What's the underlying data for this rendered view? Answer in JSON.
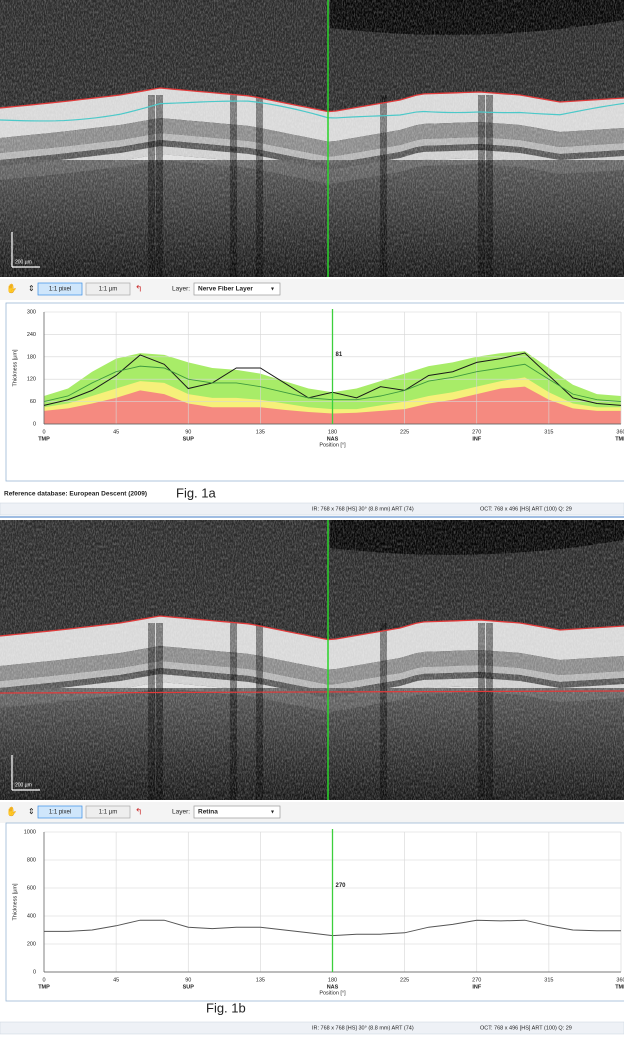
{
  "panels": [
    {
      "image": {
        "scale_label": "200 µm"
      },
      "toolbar": {
        "buttons": [
          "1:1 pixel",
          "1:1 µm"
        ],
        "layer_label": "Layer:",
        "layer": "Nerve Fiber Layer"
      },
      "chart_data": {
        "type": "line",
        "ylabel": "Thickness [µm]",
        "xlabel": "Position [°]",
        "x": [
          0,
          15,
          30,
          45,
          60,
          75,
          90,
          105,
          120,
          135,
          150,
          165,
          180,
          195,
          210,
          225,
          240,
          255,
          270,
          285,
          300,
          315,
          330,
          345,
          360
        ],
        "series": [
          {
            "color": "#1a1a1a",
            "values": [
              50,
              65,
              90,
              130,
              185,
              160,
              95,
              110,
              150,
              150,
              110,
              70,
              85,
              70,
              100,
              90,
              130,
              140,
              165,
              175,
              190,
              130,
              70,
              55,
              50
            ]
          },
          {
            "color": "#3f9a3f",
            "values": [
              60,
              75,
              110,
              140,
              155,
              150,
              120,
              110,
              110,
              100,
              85,
              70,
              65,
              65,
              75,
              90,
              115,
              125,
              140,
              150,
              160,
              120,
              80,
              65,
              60
            ]
          }
        ],
        "bands": [
          {
            "color": "#a8ec68",
            "values": [
              75,
              95,
              140,
              175,
              190,
              185,
              165,
              150,
              145,
              135,
              115,
              95,
              85,
              95,
              115,
              135,
              155,
              165,
              180,
              190,
              195,
              150,
              105,
              80,
              75
            ]
          },
          {
            "color": "#f6f07a",
            "values": [
              45,
              55,
              75,
              95,
              115,
              110,
              80,
              70,
              70,
              65,
              55,
              45,
              40,
              40,
              50,
              60,
              75,
              85,
              100,
              115,
              125,
              85,
              55,
              45,
              45
            ]
          },
          {
            "color": "#f58a80",
            "values": [
              35,
              42,
              55,
              70,
              90,
              80,
              55,
              45,
              45,
              45,
              38,
              32,
              28,
              30,
              35,
              40,
              55,
              65,
              80,
              95,
              100,
              65,
              42,
              35,
              35
            ]
          }
        ],
        "xlim": [
          0,
          360
        ],
        "xticks": [
          0,
          45,
          90,
          135,
          180,
          225,
          270,
          315,
          360
        ],
        "regions": [
          {
            "value": 0,
            "label": "TMP"
          },
          {
            "value": 90,
            "label": "SUP"
          },
          {
            "value": 180,
            "label": "NAS"
          },
          {
            "value": 270,
            "label": "INF"
          },
          {
            "value": 360,
            "label": "TMP"
          }
        ],
        "ylim": [
          0,
          300
        ],
        "yticks": [
          0,
          60,
          120,
          180,
          240,
          300
        ],
        "grid": true,
        "marker": {
          "x": 180,
          "value": 81,
          "color": "#3ccf3c"
        }
      },
      "reference": "Reference database: European Descent (2009)",
      "figure_label": "Fig. 1a",
      "status": [
        "IR: 768 x 768 [HS] 30° (8.8 mm) ART (74)",
        "OCT: 768 x 496 [HS] ART (100) Q: 29"
      ]
    },
    {
      "image": {
        "scale_label": "200 µm"
      },
      "toolbar": {
        "buttons": [
          "1:1 pixel",
          "1:1 µm"
        ],
        "layer_label": "Layer:",
        "layer": "Retina"
      },
      "chart_data": {
        "type": "line",
        "ylabel": "Thickness [µm]",
        "xlabel": "Position [°]",
        "x": [
          0,
          15,
          30,
          45,
          60,
          75,
          90,
          105,
          120,
          135,
          150,
          165,
          180,
          195,
          210,
          225,
          240,
          255,
          270,
          285,
          300,
          315,
          330,
          345,
          360
        ],
        "series": [
          {
            "color": "#555555",
            "values": [
              290,
              290,
              300,
              330,
              370,
              370,
              320,
              310,
              320,
              320,
              300,
              280,
              260,
              270,
              270,
              280,
              320,
              340,
              370,
              365,
              370,
              330,
              300,
              295,
              295
            ]
          }
        ],
        "xlim": [
          0,
          360
        ],
        "xticks": [
          0,
          45,
          90,
          135,
          180,
          225,
          270,
          315,
          360
        ],
        "regions": [
          {
            "value": 0,
            "label": "TMP"
          },
          {
            "value": 90,
            "label": "SUP"
          },
          {
            "value": 180,
            "label": "NAS"
          },
          {
            "value": 270,
            "label": "INF"
          },
          {
            "value": 360,
            "label": "TMP"
          }
        ],
        "ylim": [
          0,
          1000
        ],
        "yticks": [
          0,
          200,
          400,
          600,
          800,
          1000
        ],
        "grid": true,
        "marker": {
          "x": 180,
          "value": 270,
          "color": "#3ccf3c"
        }
      },
      "figure_label": "Fig. 1b",
      "status": [
        "IR: 768 x 768 [HS] 30° (8.8 mm) ART (74)",
        "OCT: 768 x 496 [HS] ART (100) Q: 29"
      ]
    }
  ]
}
